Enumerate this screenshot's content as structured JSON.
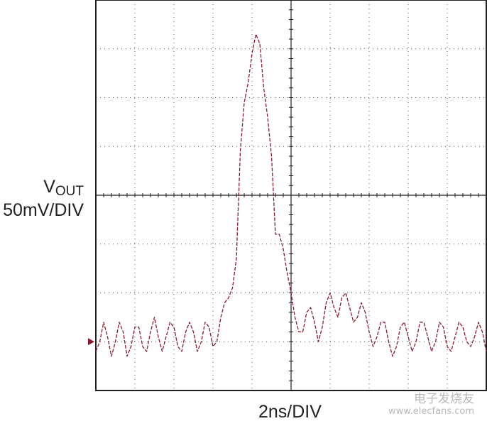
{
  "chart_data": {
    "type": "line",
    "title": "",
    "ylabel_main": "V",
    "ylabel_sub": "OUT",
    "ylabel_scale": "50mV/DIV",
    "xlabel": "2ns/DIV",
    "x_divisions": 10,
    "y_divisions": 8,
    "xlim": [
      0,
      10
    ],
    "ylim": [
      -4,
      4
    ],
    "grid": true,
    "trace_color": "#8b1a2e",
    "ground_marker_level": -3,
    "series": [
      {
        "x": [
          0.0,
          0.1,
          0.2,
          0.3,
          0.4,
          0.5,
          0.6,
          0.7,
          0.8,
          0.9,
          1.0,
          1.1,
          1.2,
          1.3,
          1.4,
          1.5,
          1.6,
          1.7,
          1.8,
          1.9,
          2.0,
          2.1,
          2.2,
          2.3,
          2.4,
          2.5,
          2.6,
          2.7,
          2.8,
          2.9,
          3.0,
          3.1,
          3.2,
          3.3,
          3.4,
          3.5,
          3.6,
          3.7,
          3.8,
          3.9,
          4.0,
          4.1,
          4.2,
          4.3,
          4.4,
          4.5,
          4.6,
          4.7,
          4.8,
          4.9,
          5.0,
          5.1,
          5.2,
          5.3,
          5.4,
          5.5,
          5.6,
          5.7,
          5.8,
          5.9,
          6.0,
          6.1,
          6.2,
          6.3,
          6.4,
          6.5,
          6.6,
          6.7,
          6.8,
          6.9,
          7.0,
          7.1,
          7.2,
          7.3,
          7.4,
          7.5,
          7.6,
          7.7,
          7.8,
          7.9,
          8.0,
          8.1,
          8.2,
          8.3,
          8.4,
          8.5,
          8.6,
          8.7,
          8.8,
          8.9,
          9.0,
          9.1,
          9.2,
          9.3,
          9.4,
          9.5,
          9.6,
          9.7,
          9.8,
          9.9,
          10.0
        ],
        "values": [
          -3.2,
          -3.0,
          -2.6,
          -2.9,
          -3.3,
          -3.0,
          -2.6,
          -2.8,
          -3.3,
          -3.1,
          -2.7,
          -2.7,
          -3.1,
          -3.2,
          -2.8,
          -2.5,
          -2.9,
          -3.2,
          -2.9,
          -2.6,
          -2.7,
          -3.1,
          -3.2,
          -2.8,
          -2.6,
          -2.8,
          -3.2,
          -3.0,
          -2.6,
          -2.7,
          -3.1,
          -3.0,
          -2.5,
          -2.2,
          -2.1,
          -1.9,
          -1.3,
          0.9,
          1.9,
          2.3,
          2.9,
          3.3,
          3.1,
          2.2,
          1.6,
          0.8,
          -0.8,
          -0.8,
          -1.1,
          -1.6,
          -2.0,
          -2.5,
          -2.8,
          -2.8,
          -2.4,
          -2.3,
          -2.6,
          -3.0,
          -2.7,
          -2.2,
          -2.0,
          -2.3,
          -2.5,
          -2.1,
          -2.0,
          -2.3,
          -2.6,
          -2.5,
          -2.2,
          -2.4,
          -2.8,
          -3.1,
          -2.9,
          -2.6,
          -2.6,
          -3.0,
          -3.3,
          -3.1,
          -2.7,
          -2.6,
          -2.9,
          -3.2,
          -3.0,
          -2.6,
          -2.6,
          -2.9,
          -3.2,
          -3.0,
          -2.6,
          -2.7,
          -3.1,
          -3.2,
          -2.9,
          -2.6,
          -2.7,
          -3.0,
          -3.1,
          -2.9,
          -2.6,
          -2.8,
          -3.2
        ]
      }
    ]
  },
  "watermark": {
    "title": "电子发烧友",
    "url": "www.elecfans.com"
  }
}
